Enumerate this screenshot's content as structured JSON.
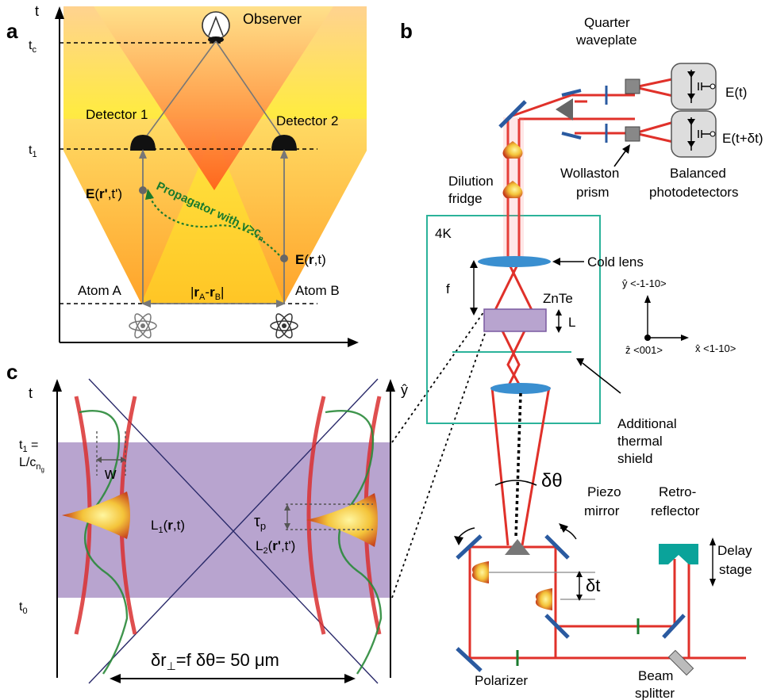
{
  "panel_a": {
    "letter": "a",
    "axis_t": "t",
    "t_c": "t",
    "t_c_sub": "c",
    "t_1": "t",
    "t_1_sub": "1",
    "observer": "Observer",
    "detector1": "Detector 1",
    "detector2": "Detector 2",
    "e_rprime_pre": "E",
    "e_rprime_mid": "(",
    "e_rprime_r": "r'",
    "e_rprime_post": ",t')",
    "e_r_pre": "E",
    "e_r_mid": "(",
    "e_r_r": "r",
    "e_r_post": ",t)",
    "propagator": "Propagator with  v>c",
    "propagator_sub": "n",
    "atom_a": "Atom A",
    "atom_b": "Atom B",
    "separation_pre": "|",
    "separation_ra": "r",
    "separation_ra_sub": "A",
    "separation_mid": "-",
    "separation_rb": "r",
    "separation_rb_sub": "B",
    "separation_post": "|"
  },
  "panel_b": {
    "letter": "b",
    "quarter_waveplate_1": "Quarter",
    "quarter_waveplate_2": "waveplate",
    "e_t": "E(t)",
    "e_t_dt": "E(t+δt)",
    "dilution_1": "Dilution",
    "dilution_2": "fridge",
    "wollaston_1": "Wollaston",
    "wollaston_2": "prism",
    "balanced_1": "Balanced",
    "balanced_2": "photodetectors",
    "four_k": "4K",
    "cold_lens": "Cold lens",
    "f": "f",
    "znte": "ZnTe",
    "L": "L",
    "y_axis": "ŷ <-1-10>",
    "z_axis": "ẑ <001>",
    "x_axis": "x̂ <1-10>",
    "additional_1": "Additional",
    "additional_2": "thermal",
    "additional_3": "shield",
    "dtheta": "δθ",
    "piezo_1": "Piezo",
    "piezo_2": "mirror",
    "retro_1": "Retro-",
    "retro_2": "reflector",
    "delay_1": "Delay",
    "delay_2": "stage",
    "dt": "δt",
    "polarizer": "Polarizer",
    "beam_1": "Beam",
    "beam_2": "splitter"
  },
  "panel_c": {
    "letter": "c",
    "axis_t": "t",
    "axis_y": "ŷ",
    "t1_eq_1": "t",
    "t1_eq_sub": "1",
    "t1_eq_2": " =",
    "t1_eq_3": "L/c",
    "t1_eq_sub2": "n",
    "t1_eq_sub3": "g",
    "w": "w",
    "tau": "τ",
    "tau_sub": "p",
    "L1_pre": "L",
    "L1_sub": "1",
    "L1_mid": "(",
    "L1_r": "r",
    "L1_post": ",t)",
    "L2_pre": "L",
    "L2_sub": "2",
    "L2_mid": "(",
    "L2_r": "r'",
    "L2_post": ",t')",
    "t0": "t",
    "t0_sub": "0",
    "dr": "δr",
    "dr_sub": "⊥",
    "dr_post": "=f δθ= 50 μm"
  },
  "colors": {
    "beam": "#e0312a",
    "green": "#1a7a2c",
    "purple": "#b8a4cf",
    "teal": "#2bb39a",
    "blue": "#3a8fd0",
    "cone_yellow": "#ffe000",
    "cone_orange": "#ff9a1f"
  }
}
